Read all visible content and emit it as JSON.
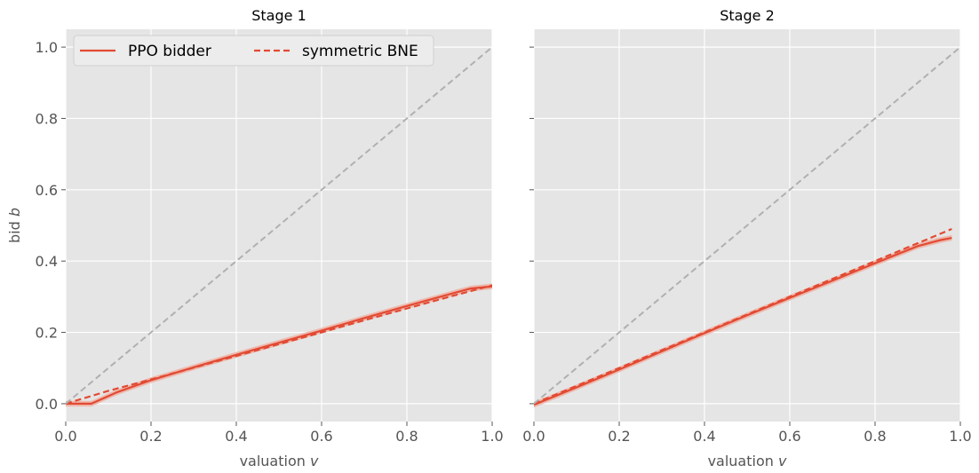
{
  "chart_data": [
    {
      "type": "line",
      "title": "Stage 1",
      "xlabel": "valuation",
      "xlabel_var": "v",
      "ylabel": "bid",
      "ylabel_var": "b",
      "xlim": [
        0,
        1
      ],
      "ylim": [
        -0.05,
        1.05
      ],
      "xticks": [
        0.0,
        0.2,
        0.4,
        0.6,
        0.8,
        1.0
      ],
      "xtick_labels": [
        "0.0",
        "0.2",
        "0.4",
        "0.6",
        "0.8",
        "1.0"
      ],
      "yticks": [
        0.0,
        0.2,
        0.4,
        0.6,
        0.8,
        1.0
      ],
      "ytick_labels": [
        "0.0",
        "0.2",
        "0.4",
        "0.6",
        "0.8",
        "1.0"
      ],
      "grid": true,
      "legend": {
        "placement": "upper-left",
        "entries": [
          {
            "label": "PPO bidder",
            "style": "solid"
          },
          {
            "label": "symmetric BNE",
            "style": "dashed"
          }
        ]
      },
      "series": [
        {
          "name": "PPO bidder",
          "style": "solid",
          "color": "#e24a33",
          "x": [
            0.0,
            0.06,
            0.12,
            0.2,
            0.3,
            0.4,
            0.5,
            0.6,
            0.7,
            0.8,
            0.9,
            0.95,
            1.0
          ],
          "y": [
            0.0,
            0.0,
            0.032,
            0.066,
            0.102,
            0.137,
            0.171,
            0.205,
            0.24,
            0.274,
            0.307,
            0.323,
            0.329
          ],
          "band": 0.008
        },
        {
          "name": "symmetric BNE",
          "style": "dashed",
          "color": "#e24a33",
          "x": [
            0.0,
            0.1,
            0.2,
            0.3,
            0.4,
            0.5,
            0.6,
            0.7,
            0.8,
            0.9,
            1.0
          ],
          "y": [
            0.0,
            0.036,
            0.068,
            0.101,
            0.134,
            0.167,
            0.2,
            0.234,
            0.267,
            0.3,
            0.332
          ]
        },
        {
          "style": "dashed",
          "color": "#b0b0b0",
          "x": [
            0.0,
            1.0
          ],
          "y": [
            0.0,
            1.0
          ]
        }
      ]
    },
    {
      "type": "line",
      "title": "Stage 2",
      "xlabel": "valuation",
      "xlabel_var": "v",
      "xlim": [
        0,
        1
      ],
      "ylim": [
        -0.05,
        1.05
      ],
      "xticks": [
        0.0,
        0.2,
        0.4,
        0.6,
        0.8,
        1.0
      ],
      "xtick_labels": [
        "0.0",
        "0.2",
        "0.4",
        "0.6",
        "0.8",
        "1.0"
      ],
      "yticks": [
        0.0,
        0.2,
        0.4,
        0.6,
        0.8,
        1.0
      ],
      "grid": true,
      "series": [
        {
          "name": "PPO bidder",
          "style": "solid",
          "color": "#e24a33",
          "x": [
            0.0,
            0.1,
            0.2,
            0.3,
            0.4,
            0.5,
            0.6,
            0.7,
            0.8,
            0.85,
            0.9,
            0.95,
            0.98
          ],
          "y": [
            -0.003,
            0.046,
            0.096,
            0.147,
            0.198,
            0.248,
            0.297,
            0.345,
            0.394,
            0.418,
            0.442,
            0.458,
            0.465
          ],
          "band": 0.008
        },
        {
          "name": "symmetric BNE",
          "style": "dashed",
          "color": "#e24a33",
          "x": [
            0.0,
            0.2,
            0.4,
            0.6,
            0.8,
            0.98
          ],
          "y": [
            0.0,
            0.1,
            0.2,
            0.3,
            0.4,
            0.49
          ]
        },
        {
          "style": "dashed",
          "color": "#b0b0b0",
          "x": [
            0.0,
            1.0
          ],
          "y": [
            0.0,
            1.0
          ]
        }
      ]
    }
  ],
  "colors": {
    "plot_background": "#e5e5e5",
    "grid": "#ffffff",
    "accent": "#e24a33",
    "identity_line": "#b0b0b0",
    "band": "#eeb3a6"
  }
}
